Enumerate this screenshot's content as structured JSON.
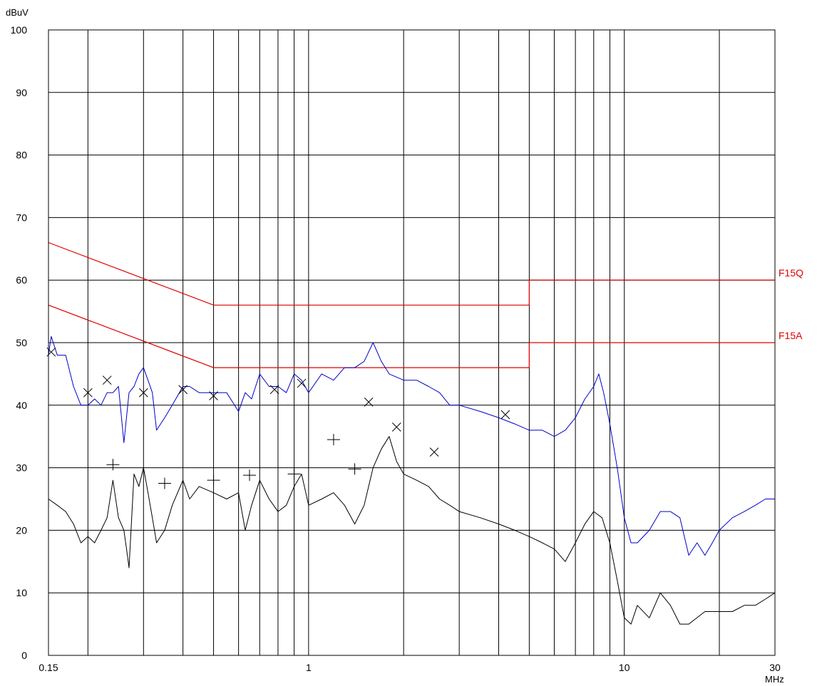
{
  "chart_data": {
    "type": "line",
    "xscale": "log",
    "xlim": [
      0.15,
      30
    ],
    "ylim": [
      0,
      100
    ],
    "ylabel": "dBuV",
    "xlabel": "MHz",
    "grid": true,
    "y_ticks": [
      "0",
      "10",
      "20",
      "30",
      "40",
      "50",
      "60",
      "70",
      "80",
      "90",
      "100"
    ],
    "x_ticks": [
      {
        "value": 0.15,
        "label": "0.15"
      },
      {
        "value": 1,
        "label": "1"
      },
      {
        "value": 10,
        "label": "10"
      },
      {
        "value": 30,
        "label": "30"
      }
    ],
    "x_gridlines": [
      0.15,
      0.2,
      0.3,
      0.4,
      0.5,
      0.6,
      0.7,
      0.8,
      0.9,
      1,
      2,
      3,
      4,
      5,
      6,
      7,
      8,
      9,
      10,
      20,
      30
    ],
    "limits": [
      {
        "name": "F15Q",
        "color": "#e00000",
        "points": [
          [
            0.15,
            66
          ],
          [
            0.5,
            56
          ],
          [
            5,
            56
          ],
          [
            5,
            60
          ],
          [
            30,
            60
          ]
        ]
      },
      {
        "name": "F15A",
        "color": "#e00000",
        "points": [
          [
            0.15,
            56
          ],
          [
            0.5,
            46
          ],
          [
            5,
            46
          ],
          [
            5,
            50
          ],
          [
            30,
            50
          ]
        ]
      }
    ],
    "series": [
      {
        "color": "#0000cc",
        "points": [
          [
            0.15,
            48
          ],
          [
            0.153,
            51
          ],
          [
            0.16,
            48
          ],
          [
            0.17,
            48
          ],
          [
            0.18,
            43
          ],
          [
            0.19,
            40
          ],
          [
            0.2,
            40
          ],
          [
            0.21,
            41
          ],
          [
            0.22,
            40
          ],
          [
            0.23,
            42
          ],
          [
            0.24,
            42
          ],
          [
            0.25,
            43
          ],
          [
            0.26,
            34
          ],
          [
            0.27,
            42
          ],
          [
            0.28,
            43
          ],
          [
            0.29,
            45
          ],
          [
            0.3,
            46
          ],
          [
            0.31,
            44
          ],
          [
            0.32,
            42
          ],
          [
            0.33,
            36
          ],
          [
            0.35,
            38
          ],
          [
            0.37,
            40
          ],
          [
            0.4,
            43
          ],
          [
            0.42,
            43
          ],
          [
            0.45,
            42
          ],
          [
            0.5,
            42
          ],
          [
            0.55,
            42
          ],
          [
            0.6,
            39
          ],
          [
            0.63,
            42
          ],
          [
            0.66,
            41
          ],
          [
            0.7,
            45
          ],
          [
            0.75,
            43
          ],
          [
            0.8,
            43
          ],
          [
            0.85,
            42
          ],
          [
            0.9,
            45
          ],
          [
            0.95,
            44
          ],
          [
            1.0,
            42
          ],
          [
            1.1,
            45
          ],
          [
            1.2,
            44
          ],
          [
            1.3,
            46
          ],
          [
            1.4,
            46
          ],
          [
            1.5,
            47
          ],
          [
            1.6,
            50
          ],
          [
            1.7,
            47
          ],
          [
            1.8,
            45
          ],
          [
            2.0,
            44
          ],
          [
            2.2,
            44
          ],
          [
            2.4,
            43
          ],
          [
            2.6,
            42
          ],
          [
            2.8,
            40
          ],
          [
            3.0,
            40
          ],
          [
            3.5,
            39
          ],
          [
            4.0,
            38
          ],
          [
            4.5,
            37
          ],
          [
            5.0,
            36
          ],
          [
            5.5,
            36
          ],
          [
            6.0,
            35
          ],
          [
            6.5,
            36
          ],
          [
            7.0,
            38
          ],
          [
            7.5,
            41
          ],
          [
            8.0,
            43
          ],
          [
            8.3,
            45
          ],
          [
            8.6,
            42
          ],
          [
            9.0,
            37
          ],
          [
            9.5,
            30
          ],
          [
            10.0,
            22
          ],
          [
            10.5,
            18
          ],
          [
            11,
            18
          ],
          [
            12,
            20
          ],
          [
            13,
            23
          ],
          [
            14,
            23
          ],
          [
            15,
            22
          ],
          [
            16,
            16
          ],
          [
            17,
            18
          ],
          [
            18,
            16
          ],
          [
            19,
            18
          ],
          [
            20,
            20
          ],
          [
            22,
            22
          ],
          [
            24,
            23
          ],
          [
            26,
            24
          ],
          [
            28,
            25
          ],
          [
            30,
            25
          ]
        ]
      },
      {
        "color": "#000000",
        "points": [
          [
            0.15,
            25
          ],
          [
            0.16,
            24
          ],
          [
            0.17,
            23
          ],
          [
            0.18,
            21
          ],
          [
            0.19,
            18
          ],
          [
            0.2,
            19
          ],
          [
            0.21,
            18
          ],
          [
            0.22,
            20
          ],
          [
            0.23,
            22
          ],
          [
            0.24,
            28
          ],
          [
            0.25,
            22
          ],
          [
            0.26,
            20
          ],
          [
            0.265,
            17
          ],
          [
            0.27,
            14
          ],
          [
            0.28,
            29
          ],
          [
            0.29,
            27
          ],
          [
            0.3,
            30
          ],
          [
            0.31,
            26
          ],
          [
            0.32,
            22
          ],
          [
            0.33,
            18
          ],
          [
            0.35,
            20
          ],
          [
            0.37,
            24
          ],
          [
            0.4,
            28
          ],
          [
            0.42,
            25
          ],
          [
            0.45,
            27
          ],
          [
            0.5,
            26
          ],
          [
            0.55,
            25
          ],
          [
            0.6,
            26
          ],
          [
            0.63,
            20
          ],
          [
            0.66,
            24
          ],
          [
            0.7,
            28
          ],
          [
            0.75,
            25
          ],
          [
            0.8,
            23
          ],
          [
            0.85,
            24
          ],
          [
            0.9,
            27
          ],
          [
            0.95,
            29
          ],
          [
            1.0,
            24
          ],
          [
            1.1,
            25
          ],
          [
            1.2,
            26
          ],
          [
            1.3,
            24
          ],
          [
            1.4,
            21
          ],
          [
            1.5,
            24
          ],
          [
            1.6,
            30
          ],
          [
            1.7,
            33
          ],
          [
            1.8,
            35
          ],
          [
            1.9,
            31
          ],
          [
            2.0,
            29
          ],
          [
            2.2,
            28
          ],
          [
            2.4,
            27
          ],
          [
            2.6,
            25
          ],
          [
            2.8,
            24
          ],
          [
            3.0,
            23
          ],
          [
            3.5,
            22
          ],
          [
            4.0,
            21
          ],
          [
            4.5,
            20
          ],
          [
            5.0,
            19
          ],
          [
            5.5,
            18
          ],
          [
            6.0,
            17
          ],
          [
            6.5,
            15
          ],
          [
            7.0,
            18
          ],
          [
            7.5,
            21
          ],
          [
            8.0,
            23
          ],
          [
            8.5,
            22
          ],
          [
            9.0,
            18
          ],
          [
            9.5,
            12
          ],
          [
            10.0,
            6
          ],
          [
            10.5,
            5
          ],
          [
            11,
            8
          ],
          [
            12,
            6
          ],
          [
            13,
            10
          ],
          [
            14,
            8
          ],
          [
            15,
            5
          ],
          [
            16,
            5
          ],
          [
            18,
            7
          ],
          [
            20,
            7
          ],
          [
            22,
            7
          ],
          [
            24,
            8
          ],
          [
            26,
            8
          ],
          [
            28,
            9
          ],
          [
            30,
            10
          ]
        ]
      }
    ],
    "markers": [
      {
        "shape": "x",
        "points": [
          [
            0.153,
            48.5
          ],
          [
            0.2,
            42
          ],
          [
            0.23,
            44
          ],
          [
            0.3,
            42
          ],
          [
            0.4,
            42.5
          ],
          [
            0.5,
            41.5
          ],
          [
            0.78,
            42.5
          ],
          [
            0.95,
            43.5
          ],
          [
            1.55,
            40.5
          ],
          [
            1.9,
            36.5
          ],
          [
            2.5,
            32.5
          ],
          [
            4.2,
            38.5
          ]
        ]
      },
      {
        "shape": "plus",
        "points": [
          [
            0.24,
            30.5
          ],
          [
            0.35,
            27.5
          ],
          [
            0.5,
            28
          ],
          [
            0.65,
            28.8
          ],
          [
            0.9,
            29
          ],
          [
            1.2,
            34.5
          ],
          [
            1.4,
            29.8
          ]
        ]
      }
    ]
  }
}
